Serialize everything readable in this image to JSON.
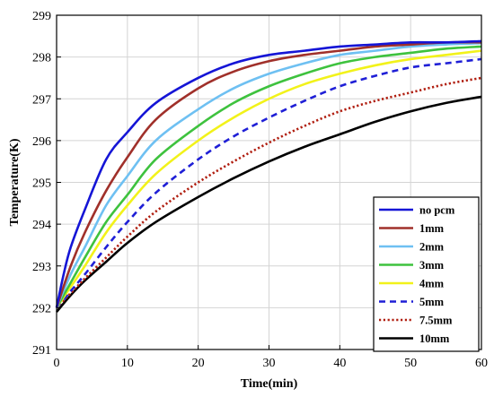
{
  "chart_data": {
    "type": "line",
    "xlabel": "Time(min)",
    "ylabel": "Temperature(K)",
    "xlim": [
      0,
      60
    ],
    "ylim": [
      291,
      299
    ],
    "xticks": [
      0,
      10,
      20,
      30,
      40,
      50,
      60
    ],
    "yticks": [
      291,
      292,
      293,
      294,
      295,
      296,
      297,
      298,
      299
    ],
    "grid": true,
    "legend_position": "bottom-right",
    "series": [
      {
        "name": "no pcm",
        "color": "#1515d6",
        "dash": "solid",
        "x": [
          0,
          1,
          2,
          4,
          7,
          10,
          14,
          20,
          25,
          30,
          35,
          40,
          45,
          50,
          55,
          60
        ],
        "y": [
          292.0,
          292.8,
          293.45,
          294.35,
          295.55,
          296.2,
          296.9,
          297.5,
          297.85,
          298.05,
          298.15,
          298.25,
          298.3,
          298.35,
          298.35,
          298.38
        ]
      },
      {
        "name": "1mm",
        "color": "#a0302a",
        "dash": "solid",
        "x": [
          0,
          2,
          4,
          7,
          10,
          14,
          20,
          25,
          30,
          35,
          40,
          45,
          50,
          55,
          60
        ],
        "y": [
          292.0,
          293.0,
          293.8,
          294.8,
          295.6,
          296.5,
          297.25,
          297.65,
          297.9,
          298.05,
          298.15,
          298.25,
          298.3,
          298.35,
          298.35
        ]
      },
      {
        "name": "2mm",
        "color": "#6ec0f2",
        "dash": "solid",
        "x": [
          0,
          2,
          4,
          7,
          10,
          14,
          20,
          25,
          30,
          35,
          40,
          45,
          50,
          55,
          60
        ],
        "y": [
          292.0,
          292.8,
          293.45,
          294.45,
          295.15,
          296.0,
          296.75,
          297.25,
          297.6,
          297.85,
          298.05,
          298.15,
          298.25,
          298.3,
          298.33
        ]
      },
      {
        "name": "3mm",
        "color": "#3ec23e",
        "dash": "solid",
        "x": [
          0,
          2,
          4,
          7,
          10,
          14,
          20,
          25,
          30,
          35,
          40,
          45,
          50,
          55,
          60
        ],
        "y": [
          292.0,
          292.6,
          293.2,
          294.05,
          294.7,
          295.55,
          296.35,
          296.9,
          297.3,
          297.6,
          297.85,
          298.0,
          298.1,
          298.2,
          298.25
        ]
      },
      {
        "name": "4mm",
        "color": "#f2f21a",
        "dash": "solid",
        "x": [
          0,
          2,
          4,
          7,
          10,
          14,
          20,
          25,
          30,
          35,
          40,
          45,
          50,
          55,
          60
        ],
        "y": [
          292.0,
          292.5,
          293.0,
          293.8,
          294.45,
          295.2,
          296.0,
          296.55,
          297.0,
          297.35,
          297.6,
          297.8,
          297.95,
          298.05,
          298.15
        ]
      },
      {
        "name": "5mm",
        "color": "#1f1fd6",
        "dash": "dashed",
        "x": [
          0,
          2,
          4,
          7,
          10,
          14,
          20,
          25,
          30,
          35,
          40,
          45,
          50,
          55,
          60
        ],
        "y": [
          292.0,
          292.4,
          292.8,
          293.45,
          294.05,
          294.75,
          295.55,
          296.1,
          296.55,
          296.95,
          297.3,
          297.55,
          297.75,
          297.85,
          297.95
        ]
      },
      {
        "name": "7.5mm",
        "color": "#b01e10",
        "dash": "dotted",
        "x": [
          0,
          2,
          4,
          7,
          10,
          14,
          20,
          25,
          30,
          35,
          40,
          45,
          50,
          55,
          60
        ],
        "y": [
          292.0,
          292.35,
          292.7,
          293.2,
          293.7,
          294.3,
          295.0,
          295.5,
          295.95,
          296.35,
          296.7,
          296.95,
          297.15,
          297.35,
          297.5
        ]
      },
      {
        "name": "10mm",
        "color": "#000000",
        "dash": "solid",
        "x": [
          0,
          2,
          4,
          7,
          10,
          14,
          20,
          25,
          30,
          35,
          40,
          45,
          50,
          55,
          60
        ],
        "y": [
          291.9,
          292.3,
          292.65,
          293.1,
          293.55,
          294.05,
          294.65,
          295.1,
          295.5,
          295.85,
          296.15,
          296.45,
          296.7,
          296.9,
          297.05
        ]
      }
    ]
  }
}
